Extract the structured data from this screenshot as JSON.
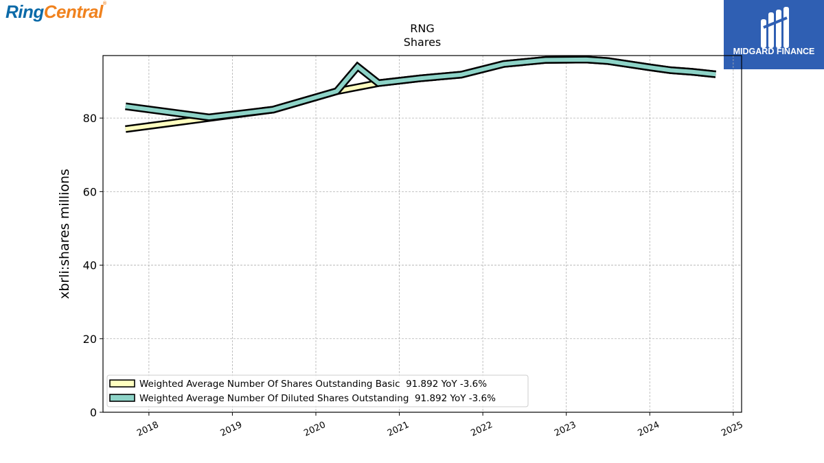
{
  "logos": {
    "left_part1": "Ring",
    "left_part2": "Central",
    "left_mark": "®",
    "right_text": "MIDGARD FINANCE"
  },
  "chart_data": {
    "type": "line",
    "title": "RNG",
    "subtitle": "Shares",
    "xlabel": "",
    "ylabel": "xbrli:shares millions",
    "ylim": [
      0,
      97
    ],
    "xlim": [
      2017.45,
      2025.1
    ],
    "x_ticks": [
      "2018",
      "2019",
      "2020",
      "2021",
      "2022",
      "2023",
      "2024",
      "2025"
    ],
    "y_ticks": [
      "0",
      "20",
      "40",
      "60",
      "80"
    ],
    "grid": true,
    "legend_position": "lower-left",
    "series": [
      {
        "name": "Weighted Average Number Of Shares Outstanding Basic  91.892 YoY -3.6%",
        "color": "#ffffc0",
        "x": [
          2017.72,
          2018.72,
          2019.49,
          2020.25,
          2020.5,
          2020.75,
          2021.25,
          2021.74,
          2022.25,
          2022.75,
          2023.24,
          2023.5,
          2024.0,
          2024.25,
          2024.5,
          2024.79
        ],
        "y": [
          77.0,
          80.0,
          82.3,
          87.3,
          88.4,
          89.5,
          90.8,
          91.8,
          94.7,
          95.8,
          95.9,
          95.5,
          93.8,
          93.0,
          92.6,
          91.9
        ]
      },
      {
        "name": "Weighted Average Number Of Diluted Shares Outstanding  91.892 YoY -3.6%",
        "color": "#8dd3c7",
        "x": [
          2017.72,
          2018.72,
          2019.49,
          2020.25,
          2020.5,
          2020.75,
          2021.25,
          2021.74,
          2022.25,
          2022.75,
          2023.24,
          2023.5,
          2024.0,
          2024.25,
          2024.5,
          2024.79
        ],
        "y": [
          83.2,
          80.2,
          82.3,
          87.3,
          94.0,
          89.5,
          90.8,
          91.8,
          94.7,
          95.8,
          95.9,
          95.5,
          93.8,
          93.0,
          92.6,
          91.9
        ]
      }
    ]
  }
}
